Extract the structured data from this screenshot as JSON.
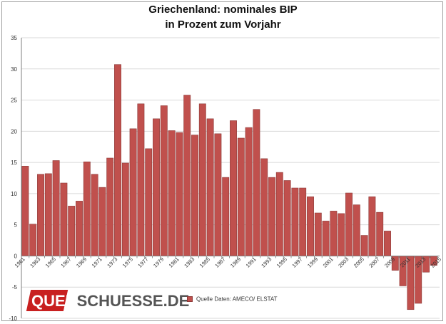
{
  "title_line1": "Griechenland: nominales BIP",
  "title_line2": "in Prozent zum Vorjahr",
  "logo": {
    "part1": "QUER",
    "part2": "SCHUESSE.DE"
  },
  "legend": {
    "label": "Quelle Daten: AMECO/ ELSTAT"
  },
  "colors": {
    "bar": "#c0504d",
    "bar_edge": "#8c3836",
    "grid": "#d9d9d9",
    "axis": "#7f7f7f",
    "logo_red": "#c82020"
  },
  "chart_data": {
    "type": "bar",
    "title": "Griechenland: nominales BIP in Prozent zum Vorjahr",
    "xlabel": "",
    "ylabel": "",
    "ylim": [
      -10,
      35
    ],
    "yticks": [
      -10,
      -5,
      0,
      5,
      10,
      15,
      20,
      25,
      30,
      35
    ],
    "grid": true,
    "legend_position": "bottom",
    "categories": [
      "1961",
      "1962",
      "1963",
      "1964",
      "1965",
      "1966",
      "1967",
      "1968",
      "1969",
      "1970",
      "1971",
      "1972",
      "1973",
      "1974",
      "1975",
      "1976",
      "1977",
      "1978",
      "1979",
      "1980",
      "1981",
      "1982",
      "1983",
      "1984",
      "1985",
      "1986",
      "1987",
      "1988",
      "1989",
      "1990",
      "1991",
      "1992",
      "1993",
      "1994",
      "1995",
      "1996",
      "1997",
      "1998",
      "1999",
      "2000",
      "2001",
      "2002",
      "2003",
      "2004",
      "2005",
      "2006",
      "2007",
      "2008",
      "2009",
      "2010",
      "2011",
      "2012",
      "2013",
      "2014"
    ],
    "xtick_labels": [
      "1961",
      "1963",
      "1965",
      "1967",
      "1969",
      "1971",
      "1973",
      "1975",
      "1977",
      "1979",
      "1981",
      "1983",
      "1985",
      "1987",
      "1989",
      "1991",
      "1993",
      "1995",
      "1997",
      "1999",
      "2001",
      "2003",
      "2005",
      "2007",
      "2009",
      "2011",
      "2013",
      "2015"
    ],
    "series": [
      {
        "name": "Quelle Daten: AMECO/ ELSTAT",
        "values": [
          14.4,
          5.1,
          13.1,
          13.2,
          15.3,
          11.7,
          8.0,
          8.8,
          15.1,
          13.1,
          11.0,
          15.7,
          30.7,
          14.9,
          20.4,
          24.4,
          17.2,
          22.0,
          24.1,
          20.1,
          19.8,
          25.8,
          19.4,
          24.4,
          22.0,
          19.6,
          12.6,
          21.7,
          18.9,
          20.6,
          23.5,
          15.6,
          12.6,
          13.4,
          12.1,
          10.9,
          10.9,
          9.5,
          6.9,
          5.6,
          7.2,
          6.8,
          10.1,
          8.2,
          3.3,
          9.5,
          7.0,
          4.0,
          -2.3,
          -4.8,
          -8.6,
          -7.6,
          -2.6,
          -1.5
        ]
      }
    ]
  }
}
